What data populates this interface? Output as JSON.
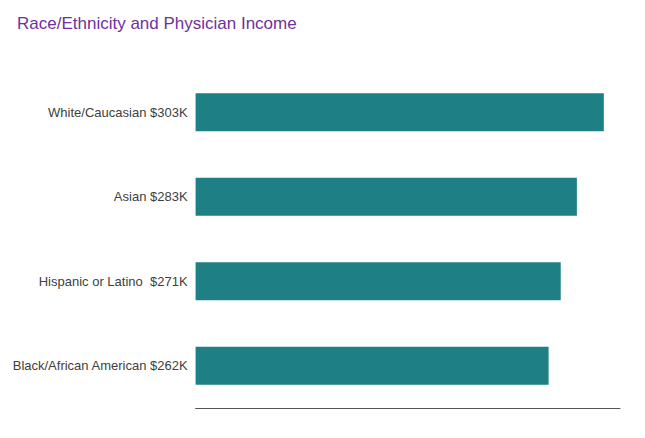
{
  "chart_data": {
    "type": "bar",
    "title": "Race/Ethnicity and Physician Income",
    "categories": [
      "Black/African American $262K",
      "Hispanic or Latino  $271K",
      "Asian $283K",
      "White/Caucasian $303K"
    ],
    "values": [
      262,
      271,
      283,
      303
    ],
    "color": "#1e7f85",
    "orientation": "horizontal",
    "xlim": [
      0,
      315
    ],
    "grid": false,
    "tick_labels": "y"
  }
}
